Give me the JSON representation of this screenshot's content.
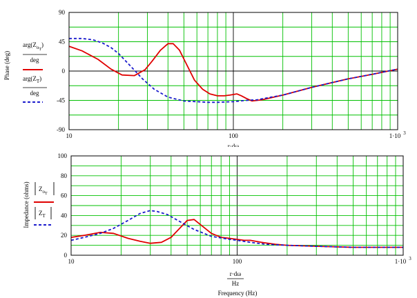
{
  "chart_data": [
    {
      "type": "line",
      "xscale": "log",
      "xlim": [
        10,
        1000
      ],
      "ylim": [
        -90,
        90
      ],
      "y_ticks": [
        "90",
        "45",
        "0",
        "-45",
        "-90"
      ],
      "y_tick_values": [
        90,
        45,
        0,
        -45,
        -90
      ],
      "x_ticks": [
        "10",
        "100",
        "1·10"
      ],
      "x_tick_values": [
        10,
        100,
        1000
      ],
      "x_tick_exponent": "3",
      "x_axis_label_partial": "r·dω",
      "ylabel": "Phase (deg)",
      "legend": [
        {
          "num_pre": "arg(Z",
          "num_sub": "o",
          "num_subsub": "T",
          "num_post": ")",
          "den": "deg"
        },
        {
          "num_pre": "arg(Z",
          "num_sub": "T",
          "num_subsub": "",
          "num_post": ")",
          "den": "deg"
        }
      ],
      "grid": true,
      "series": [
        {
          "color": "#e00000",
          "style": "solid",
          "x": [
            10,
            12,
            15,
            18,
            21,
            25,
            29,
            32,
            36,
            40,
            43,
            47,
            52,
            58,
            65,
            72,
            80,
            88,
            95,
            100,
            105,
            112,
            120,
            130,
            150,
            200,
            300,
            500,
            700,
            1000
          ],
          "y": [
            38,
            31,
            18,
            3,
            -6,
            -7,
            2,
            15,
            32,
            42,
            42,
            32,
            10,
            -14,
            -28,
            -35,
            -38,
            -38,
            -37,
            -36,
            -35,
            -38,
            -42,
            -46,
            -44,
            -37,
            -25,
            -12,
            -5,
            3
          ]
        },
        {
          "color": "#1a1acc",
          "style": "dashed",
          "x": [
            10,
            12,
            14,
            16,
            18,
            20,
            24,
            28,
            33,
            40,
            50,
            60,
            70,
            80,
            100,
            120,
            140,
            170,
            200,
            300,
            500,
            700,
            1000
          ],
          "y": [
            50,
            50,
            48,
            43,
            36,
            27,
            6,
            -12,
            -28,
            -40,
            -46,
            -47,
            -48,
            -48,
            -47,
            -45,
            -44,
            -40,
            -37,
            -25,
            -12,
            -5,
            3
          ]
        }
      ]
    },
    {
      "type": "line",
      "xscale": "log",
      "xlim": [
        10,
        1000
      ],
      "ylim": [
        0,
        100
      ],
      "y_ticks": [
        "100",
        "80",
        "60",
        "40",
        "20",
        "0"
      ],
      "y_tick_values": [
        100,
        80,
        60,
        40,
        20,
        0
      ],
      "x_ticks": [
        "10",
        "100",
        "1·10"
      ],
      "x_tick_values": [
        10,
        100,
        1000
      ],
      "x_tick_exponent": "3",
      "xlabel": {
        "num": "r·dω",
        "den": "Hz",
        "caption": "Frequency (Hz)"
      },
      "ylabel": "Impedance (ohms)",
      "legend": [
        {
          "pre": "Z",
          "sub": "o",
          "subsub": "T"
        },
        {
          "pre": "Z",
          "sub": "T",
          "subsub": ""
        }
      ],
      "grid": true,
      "series": [
        {
          "color": "#e00000",
          "style": "solid",
          "x": [
            10,
            12,
            15,
            18,
            22,
            26,
            30,
            35,
            40,
            45,
            50,
            55,
            60,
            70,
            80,
            90,
            100,
            110,
            120,
            140,
            170,
            200,
            300,
            500,
            700,
            1000
          ],
          "y": [
            18,
            20,
            23,
            22,
            17,
            14,
            12,
            13,
            18,
            27,
            35,
            36,
            31,
            22,
            18,
            17,
            16,
            15,
            15,
            13,
            11,
            10,
            9,
            8,
            8,
            8
          ]
        },
        {
          "color": "#1a1acc",
          "style": "dashed",
          "x": [
            10,
            12,
            15,
            18,
            22,
            26,
            30,
            33,
            38,
            45,
            55,
            70,
            90,
            100,
            120,
            150,
            200,
            300,
            500,
            700,
            1000
          ],
          "y": [
            15,
            18,
            22,
            27,
            35,
            42,
            45,
            44,
            41,
            34,
            26,
            19,
            16,
            15,
            13,
            11,
            10,
            9,
            8,
            8,
            8
          ]
        }
      ]
    }
  ]
}
